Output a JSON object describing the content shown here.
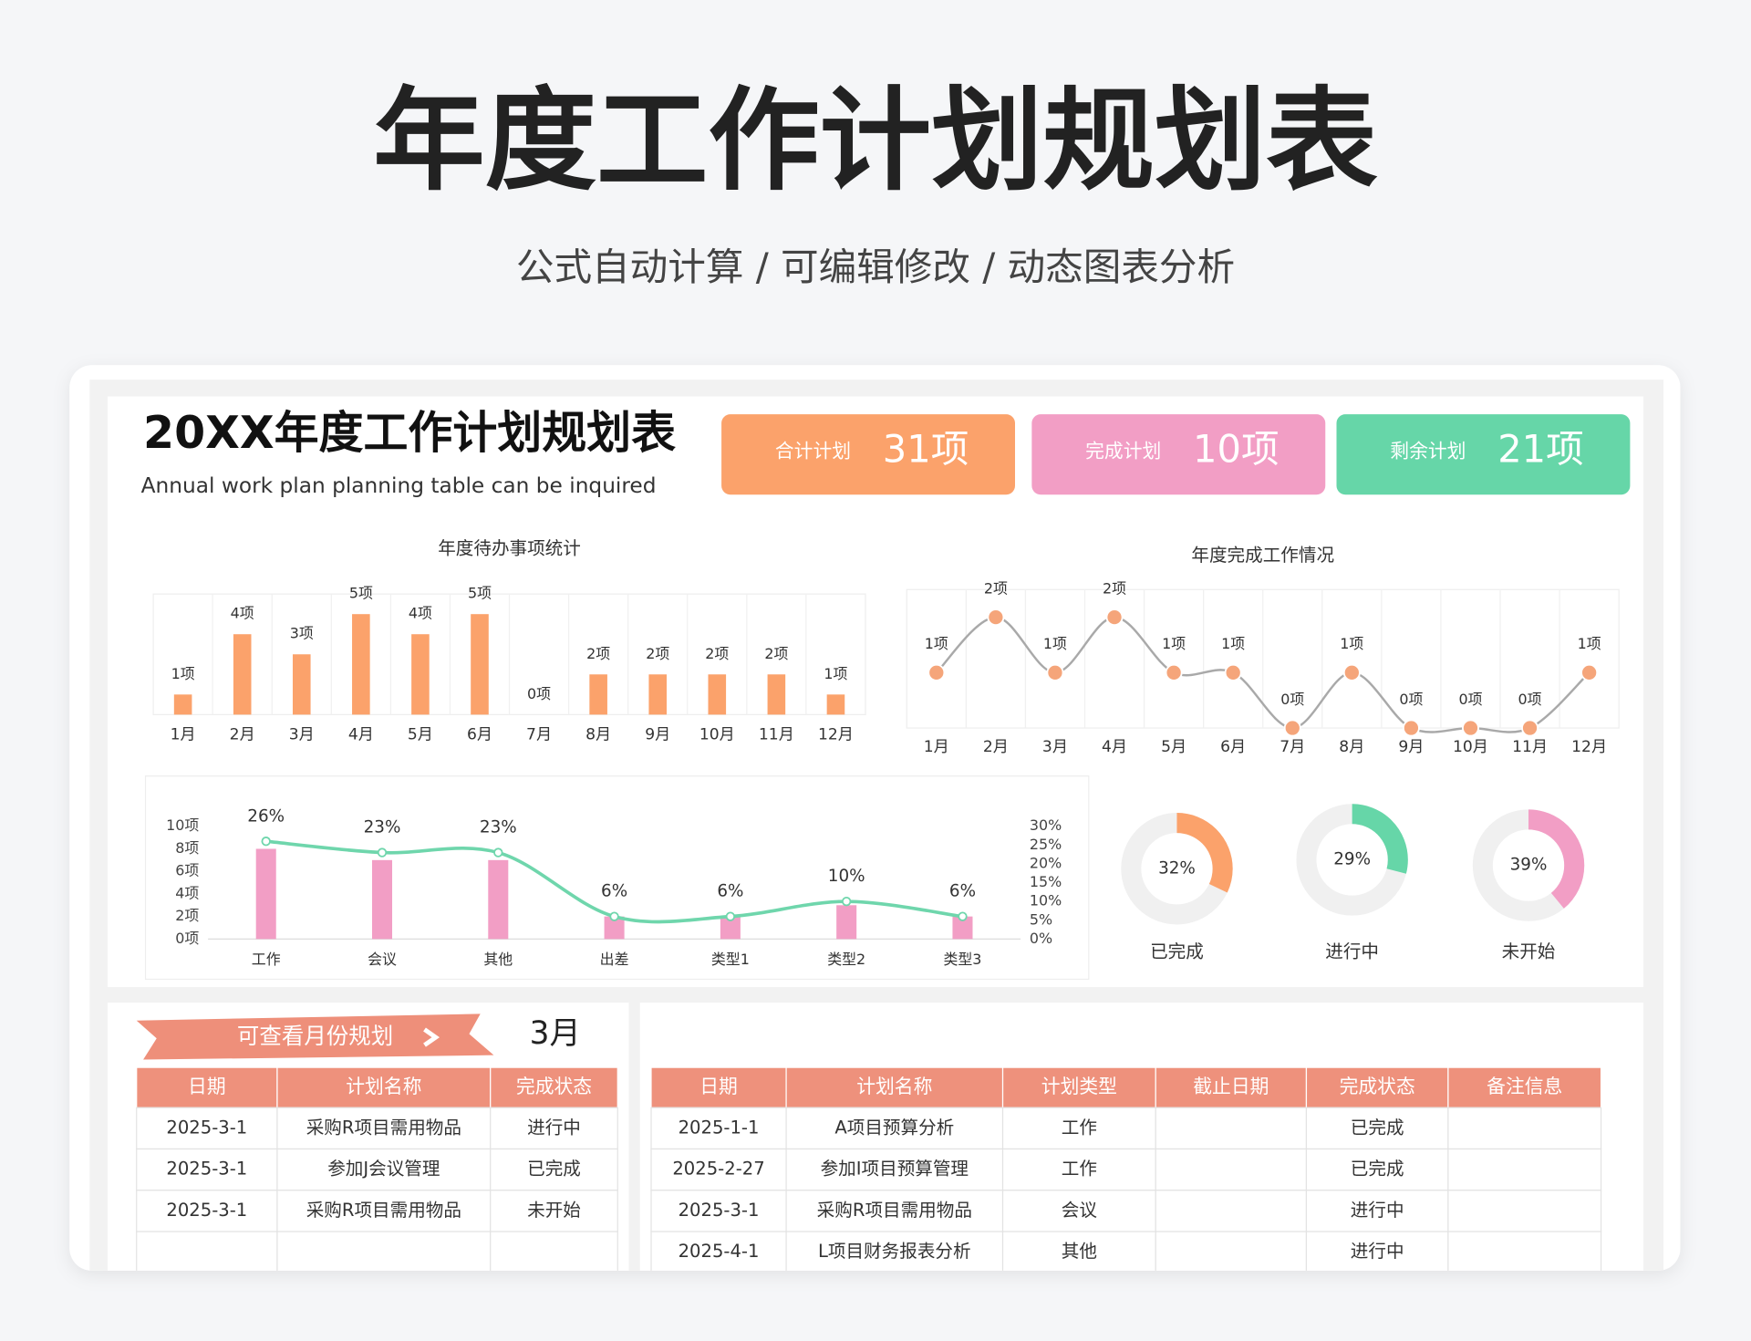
{
  "header": {
    "title": "年度工作计划规划表",
    "subtitle": "公式自动计算 / 可编辑修改 / 动态图表分析"
  },
  "dashboard": {
    "title": "20XX年度工作计划规划表",
    "subtitle": "Annual work plan planning table can be inquired",
    "kpis": [
      {
        "label": "合计计划",
        "value": "31项"
      },
      {
        "label": "完成计划",
        "value": "10项"
      },
      {
        "label": "剩余计划",
        "value": "21项"
      }
    ]
  },
  "chart_data": [
    {
      "type": "bar",
      "title": "年度待办事项统计",
      "categories": [
        "1月",
        "2月",
        "3月",
        "4月",
        "5月",
        "6月",
        "7月",
        "8月",
        "9月",
        "10月",
        "11月",
        "12月"
      ],
      "values": [
        1,
        4,
        3,
        5,
        4,
        5,
        0,
        2,
        2,
        2,
        2,
        1
      ],
      "value_labels": [
        "1项",
        "4项",
        "3项",
        "5项",
        "4项",
        "5项",
        "0项",
        "2项",
        "2项",
        "2项",
        "2项",
        "1项"
      ],
      "color": "#fba26b",
      "ylim": [
        0,
        6
      ],
      "grid": true
    },
    {
      "type": "line",
      "title": "年度完成工作情况",
      "categories": [
        "1月",
        "2月",
        "3月",
        "4月",
        "5月",
        "6月",
        "7月",
        "8月",
        "9月",
        "10月",
        "11月",
        "12月"
      ],
      "values": [
        1,
        2,
        1,
        2,
        1,
        1,
        0,
        1,
        0,
        0,
        0,
        1
      ],
      "value_labels": [
        "1项",
        "2项",
        "1项",
        "2项",
        "1项",
        "1项",
        "0项",
        "1项",
        "0项",
        "0项",
        "0项",
        "1项"
      ],
      "color": "#f5a57a",
      "line_color": "#a9a9a9",
      "ylim": [
        0,
        2.5
      ],
      "grid": true
    },
    {
      "type": "bar_line",
      "categories": [
        "工作",
        "会议",
        "其他",
        "出差",
        "类型1",
        "类型2",
        "类型3"
      ],
      "series": [
        {
          "type": "bar",
          "color": "#f29ec5",
          "values": [
            8,
            7,
            7,
            2,
            2,
            3,
            2
          ]
        },
        {
          "type": "line",
          "color": "#6fd6ac",
          "axis": "y2",
          "values": [
            26,
            23,
            23,
            6,
            6,
            10,
            6
          ],
          "value_labels": [
            "26%",
            "23%",
            "23%",
            "6%",
            "6%",
            "10%",
            "6%"
          ]
        }
      ],
      "ylim": [
        0,
        10
      ],
      "yticks": [
        {
          "value": 0,
          "label": "0项"
        },
        {
          "value": 2,
          "label": "2项"
        },
        {
          "value": 4,
          "label": "4项"
        },
        {
          "value": 6,
          "label": "6项"
        },
        {
          "value": 8,
          "label": "8项"
        },
        {
          "value": 10,
          "label": "10项"
        }
      ],
      "y2lim": [
        0,
        30
      ],
      "y2ticks": [
        {
          "value": 0,
          "label": "0%"
        },
        {
          "value": 5,
          "label": "5%"
        },
        {
          "value": 10,
          "label": "10%"
        },
        {
          "value": 15,
          "label": "15%"
        },
        {
          "value": 20,
          "label": "20%"
        },
        {
          "value": 25,
          "label": "25%"
        },
        {
          "value": 30,
          "label": "30%"
        }
      ]
    },
    {
      "type": "donut",
      "categories": [
        "已完成"
      ],
      "values": [
        32
      ],
      "value_labels": [
        "32%"
      ],
      "color": "#fba26b"
    },
    {
      "type": "donut",
      "categories": [
        "进行中"
      ],
      "values": [
        29
      ],
      "value_labels": [
        "29%"
      ],
      "color": "#66d6a8"
    },
    {
      "type": "donut",
      "categories": [
        "未开始"
      ],
      "values": [
        39
      ],
      "value_labels": [
        "39%"
      ],
      "color": "#f29ec5"
    }
  ],
  "month_panel": {
    "button": "可查看月份规划",
    "month": "3月",
    "columns": [
      "日期",
      "计划名称",
      "完成状态"
    ],
    "rows": [
      [
        "2025-3-1",
        "采购R项目需用物品",
        "进行中"
      ],
      [
        "2025-3-1",
        "参加J会议管理",
        "已完成"
      ],
      [
        "2025-3-1",
        "采购R项目需用物品",
        "未开始"
      ]
    ]
  },
  "plan_table": {
    "columns": [
      "日期",
      "计划名称",
      "计划类型",
      "截止日期",
      "完成状态",
      "备注信息"
    ],
    "rows": [
      {
        "date": "2025-1-1",
        "name": "A项目预算分析",
        "type": "工作",
        "status": "已完成"
      },
      {
        "date": "2025-2-27",
        "name": "参加I项目预算管理",
        "type": "工作",
        "status": "已完成"
      },
      {
        "date": "2025-3-1",
        "name": "采购R项目需用物品",
        "type": "会议",
        "status": "进行中"
      },
      {
        "date": "2025-4-1",
        "name": "L项目财务报表分析",
        "type": "其他",
        "status": "进行中"
      }
    ]
  }
}
